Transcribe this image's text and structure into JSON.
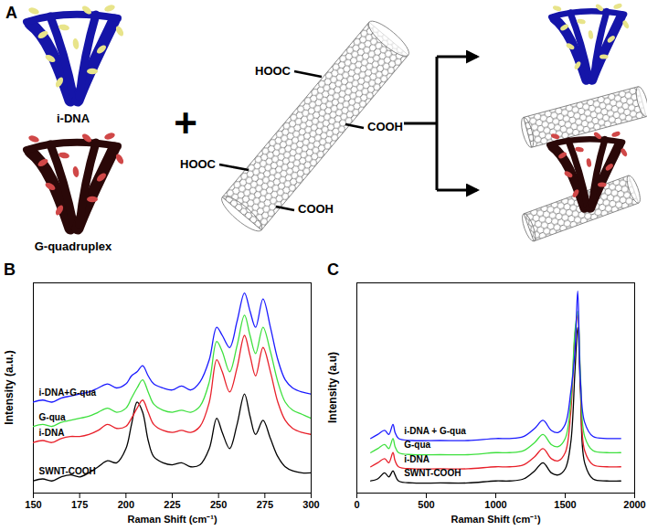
{
  "diagram": {
    "label": "A",
    "reactants": [
      "i-DNA",
      "G-quadruplex"
    ],
    "operator": "+",
    "functional_groups": [
      "HOOC",
      "COOH",
      "HOOC",
      "COOH"
    ]
  },
  "chart_data": [
    {
      "type": "line",
      "title": "B",
      "x_label": "Raman Shift (cm⁻¹)",
      "y_label": "Intensity (a.u.)",
      "x": [
        150,
        155,
        160,
        165,
        170,
        175,
        180,
        185,
        190,
        195,
        200,
        203,
        206,
        209,
        212,
        215,
        220,
        225,
        230,
        235,
        240,
        245,
        249,
        252,
        256,
        260,
        264,
        267,
        270,
        274,
        278,
        282,
        286,
        290,
        295,
        300
      ],
      "series": [
        {
          "name": "SWNT-COOH",
          "color": "#000000",
          "values": [
            6,
            7,
            6,
            8,
            9,
            8,
            10,
            13,
            16,
            15,
            22,
            34,
            45,
            40,
            26,
            18,
            15,
            14,
            15,
            13,
            14,
            22,
            37,
            30,
            22,
            34,
            49,
            38,
            29,
            36,
            27,
            18,
            13,
            11,
            10,
            10
          ]
        },
        {
          "name": "i-DNA",
          "color": "#e8202a",
          "values": [
            25,
            26,
            25,
            27,
            28,
            28,
            29,
            31,
            34,
            32,
            33,
            37,
            42,
            46,
            40,
            34,
            31,
            30,
            31,
            30,
            33,
            45,
            66,
            60,
            50,
            62,
            78,
            68,
            58,
            72,
            60,
            45,
            36,
            32,
            30,
            29
          ]
        },
        {
          "name": "G-qua",
          "color": "#3ee03e",
          "values": [
            33,
            34,
            33,
            35,
            36,
            37,
            38,
            40,
            42,
            40,
            42,
            47,
            52,
            56,
            50,
            44,
            41,
            40,
            41,
            40,
            43,
            55,
            75,
            70,
            60,
            73,
            88,
            78,
            69,
            82,
            70,
            55,
            45,
            41,
            39,
            37
          ]
        },
        {
          "name": "i-DNA+G-qua",
          "color": "#1a1aff",
          "values": [
            45,
            46,
            45,
            47,
            48,
            49,
            50,
            52,
            54,
            52,
            54,
            58,
            60,
            63,
            58,
            54,
            52,
            51,
            53,
            51,
            55,
            66,
            82,
            78,
            72,
            85,
            99,
            90,
            82,
            96,
            82,
            66,
            56,
            52,
            50,
            49
          ]
        }
      ],
      "xlim": [
        150,
        300
      ],
      "xticks": [
        150,
        175,
        200,
        225,
        250,
        275,
        300
      ],
      "ylim": [
        0,
        104
      ],
      "tick_labels": "x"
    },
    {
      "type": "line",
      "title": "C",
      "x_label": "Raman Shift (cm⁻¹)",
      "y_label": "Intensity (a.u)",
      "x": [
        100,
        150,
        200,
        230,
        260,
        275,
        300,
        400,
        600,
        800,
        1000,
        1100,
        1200,
        1280,
        1340,
        1400,
        1450,
        1500,
        1540,
        1570,
        1590,
        1610,
        1640,
        1700,
        1800,
        1900
      ],
      "series": [
        {
          "name": "SWNT-COOH",
          "color": "#000000",
          "values": [
            6,
            7,
            10,
            8,
            11,
            9,
            6,
            5,
            5,
            5,
            6,
            6,
            7,
            11,
            15,
            10,
            9,
            12,
            25,
            60,
            82,
            50,
            15,
            7,
            6,
            6
          ]
        },
        {
          "name": "i-DNA",
          "color": "#e8202a",
          "values": [
            13,
            15,
            17,
            15,
            20,
            16,
            13,
            12,
            12,
            12,
            13,
            13,
            14,
            18,
            22,
            17,
            16,
            20,
            40,
            78,
            88,
            55,
            21,
            14,
            13,
            13
          ]
        },
        {
          "name": "G-qua",
          "color": "#3ee03e",
          "values": [
            20,
            22,
            24,
            22,
            27,
            23,
            20,
            19,
            19,
            19,
            20,
            20,
            21,
            25,
            29,
            24,
            23,
            27,
            45,
            80,
            90,
            58,
            28,
            21,
            20,
            20
          ]
        },
        {
          "name": "i-DNA + G-qua",
          "color": "#1a1aff",
          "values": [
            27,
            29,
            31,
            29,
            34,
            30,
            27,
            26,
            26,
            26,
            27,
            27,
            28,
            32,
            36,
            31,
            30,
            34,
            50,
            70,
            100,
            55,
            35,
            28,
            27,
            27
          ]
        }
      ],
      "xlim": [
        0,
        2000
      ],
      "xticks": [
        0,
        500,
        1000,
        1500,
        2000
      ],
      "ylim": [
        0,
        104
      ],
      "tick_labels": "x"
    }
  ]
}
